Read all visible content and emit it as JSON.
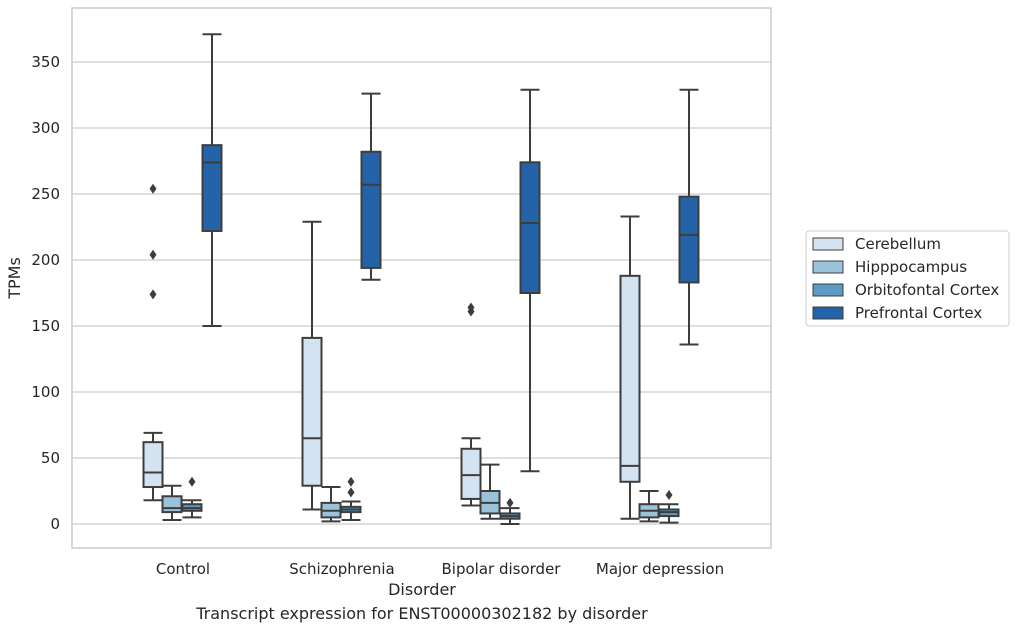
{
  "caption": "Transcript expression for ENST00000302182 by disorder",
  "chart_data": {
    "type": "box",
    "xlabel": "Disorder",
    "ylabel": "TPMs",
    "ylim": [
      -18,
      390
    ],
    "yticks": [
      0,
      50,
      100,
      150,
      200,
      250,
      300,
      350
    ],
    "categories": [
      "Control",
      "Schizophrenia",
      "Bipolar disorder",
      "Major depression"
    ],
    "grid": "horizontal",
    "legend_position": "right",
    "series": [
      {
        "name": "Cerebellum",
        "color": "#d4e3f1",
        "boxes": [
          {
            "whislo": 18,
            "q1": 28,
            "med": 39,
            "q3": 62,
            "whishi": 69,
            "fliers": [
              174,
              204,
              254
            ]
          },
          {
            "whislo": 11,
            "q1": 29,
            "med": 65,
            "q3": 141,
            "whishi": 229,
            "fliers": []
          },
          {
            "whislo": 14,
            "q1": 19,
            "med": 37,
            "q3": 57,
            "whishi": 65,
            "fliers": [
              161,
              164
            ]
          },
          {
            "whislo": 4,
            "q1": 32,
            "med": 44,
            "q3": 188,
            "whishi": 233,
            "fliers": []
          }
        ]
      },
      {
        "name": "Hipppocampus",
        "color": "#9bc2db",
        "boxes": [
          {
            "whislo": 3,
            "q1": 9,
            "med": 12,
            "q3": 21,
            "whishi": 29,
            "fliers": []
          },
          {
            "whislo": 2,
            "q1": 5,
            "med": 10,
            "q3": 16,
            "whishi": 28,
            "fliers": []
          },
          {
            "whislo": 4,
            "q1": 8,
            "med": 16,
            "q3": 25,
            "whishi": 45,
            "fliers": []
          },
          {
            "whislo": 2,
            "q1": 5,
            "med": 10,
            "q3": 15,
            "whishi": 25,
            "fliers": []
          }
        ]
      },
      {
        "name": "Orbitofontal Cortex",
        "color": "#5b9bc6",
        "boxes": [
          {
            "whislo": 5,
            "q1": 10,
            "med": 12,
            "q3": 15,
            "whishi": 18,
            "fliers": [
              32
            ]
          },
          {
            "whislo": 3,
            "q1": 9,
            "med": 11,
            "q3": 13,
            "whishi": 17,
            "fliers": [
              24,
              32
            ]
          },
          {
            "whislo": 0,
            "q1": 4,
            "med": 6,
            "q3": 8,
            "whishi": 12,
            "fliers": [
              16
            ]
          },
          {
            "whislo": 1,
            "q1": 6,
            "med": 9,
            "q3": 11,
            "whishi": 15,
            "fliers": [
              22
            ]
          }
        ]
      },
      {
        "name": "Prefrontal Cortex",
        "color": "#2563a8",
        "boxes": [
          {
            "whislo": 150,
            "q1": 222,
            "med": 274,
            "q3": 287,
            "whishi": 371,
            "fliers": []
          },
          {
            "whislo": 185,
            "q1": 194,
            "med": 257,
            "q3": 282,
            "whishi": 326,
            "fliers": []
          },
          {
            "whislo": 40,
            "q1": 175,
            "med": 228,
            "q3": 274,
            "whishi": 329,
            "fliers": []
          },
          {
            "whislo": 136,
            "q1": 183,
            "med": 219,
            "q3": 248,
            "whishi": 329,
            "fliers": []
          }
        ]
      }
    ]
  }
}
